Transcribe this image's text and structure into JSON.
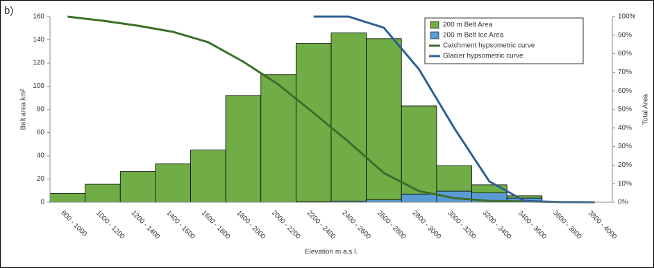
{
  "chart_data": {
    "type": "bar",
    "annotation": "b)",
    "y_label": "Belt area km²",
    "y2_label": "Total Area",
    "x_label": "Elevation m a.s.l.",
    "categories": [
      "800 - 1000",
      "1000 - 1200",
      "1200 - 1400",
      "1400 - 1600",
      "1600 - 1800",
      "1800 - 2000",
      "2000 - 2200",
      "2200 - 2400",
      "2400 - 2600",
      "2600 - 2800",
      "2800 - 3000",
      "3000 - 3200",
      "3200 - 3400",
      "3400 - 3600",
      "3600 - 3800",
      "3800 - 4000"
    ],
    "series": [
      {
        "name": "200 m Belt Area",
        "type": "bar",
        "color": "#70ad47",
        "values": [
          7.5,
          15.5,
          26.5,
          33,
          45,
          92,
          110,
          137,
          146,
          141,
          83,
          31.5,
          15,
          5.5,
          0,
          0
        ]
      },
      {
        "name": "200 m Belt Ice Area",
        "type": "bar",
        "color": "#5b9bd5",
        "values": [
          0,
          0,
          0,
          0,
          0,
          0,
          0,
          0.5,
          1,
          2,
          7,
          9.5,
          8,
          3.5,
          0,
          0
        ]
      },
      {
        "name": "Catchment hypsometric curve",
        "type": "line",
        "axis": "y2",
        "color": "#3b6e28",
        "values": [
          100,
          97.8,
          95.1,
          91.8,
          86.2,
          75.7,
          63.4,
          48.1,
          32.5,
          15.7,
          6,
          2.2,
          0.7,
          0.4,
          0.1,
          0
        ]
      },
      {
        "name": "Glacier hypsometric curve",
        "type": "line",
        "axis": "y2",
        "color": "#2e5f8f",
        "values": [
          null,
          null,
          null,
          null,
          null,
          null,
          null,
          100,
          100,
          94,
          71.6,
          40,
          11.2,
          0.7,
          0.1,
          0
        ]
      }
    ],
    "ylim": [
      0,
      160
    ],
    "yticks": [
      0,
      20,
      40,
      60,
      80,
      100,
      120,
      140,
      160
    ],
    "y2lim": [
      0,
      100
    ],
    "y2ticks": [
      {
        "value": 0,
        "label": "0%"
      },
      {
        "value": 10,
        "label": "10%"
      },
      {
        "value": 20,
        "label": "20%"
      },
      {
        "value": 30,
        "label": "30%"
      },
      {
        "value": 40,
        "label": "40%"
      },
      {
        "value": 50,
        "label": "50%"
      },
      {
        "value": 60,
        "label": "60%"
      },
      {
        "value": 70,
        "label": "70%"
      },
      {
        "value": 80,
        "label": "80%"
      },
      {
        "value": 90,
        "label": "90%"
      },
      {
        "value": 100,
        "label": "100%"
      }
    ],
    "legend": "upper right"
  }
}
